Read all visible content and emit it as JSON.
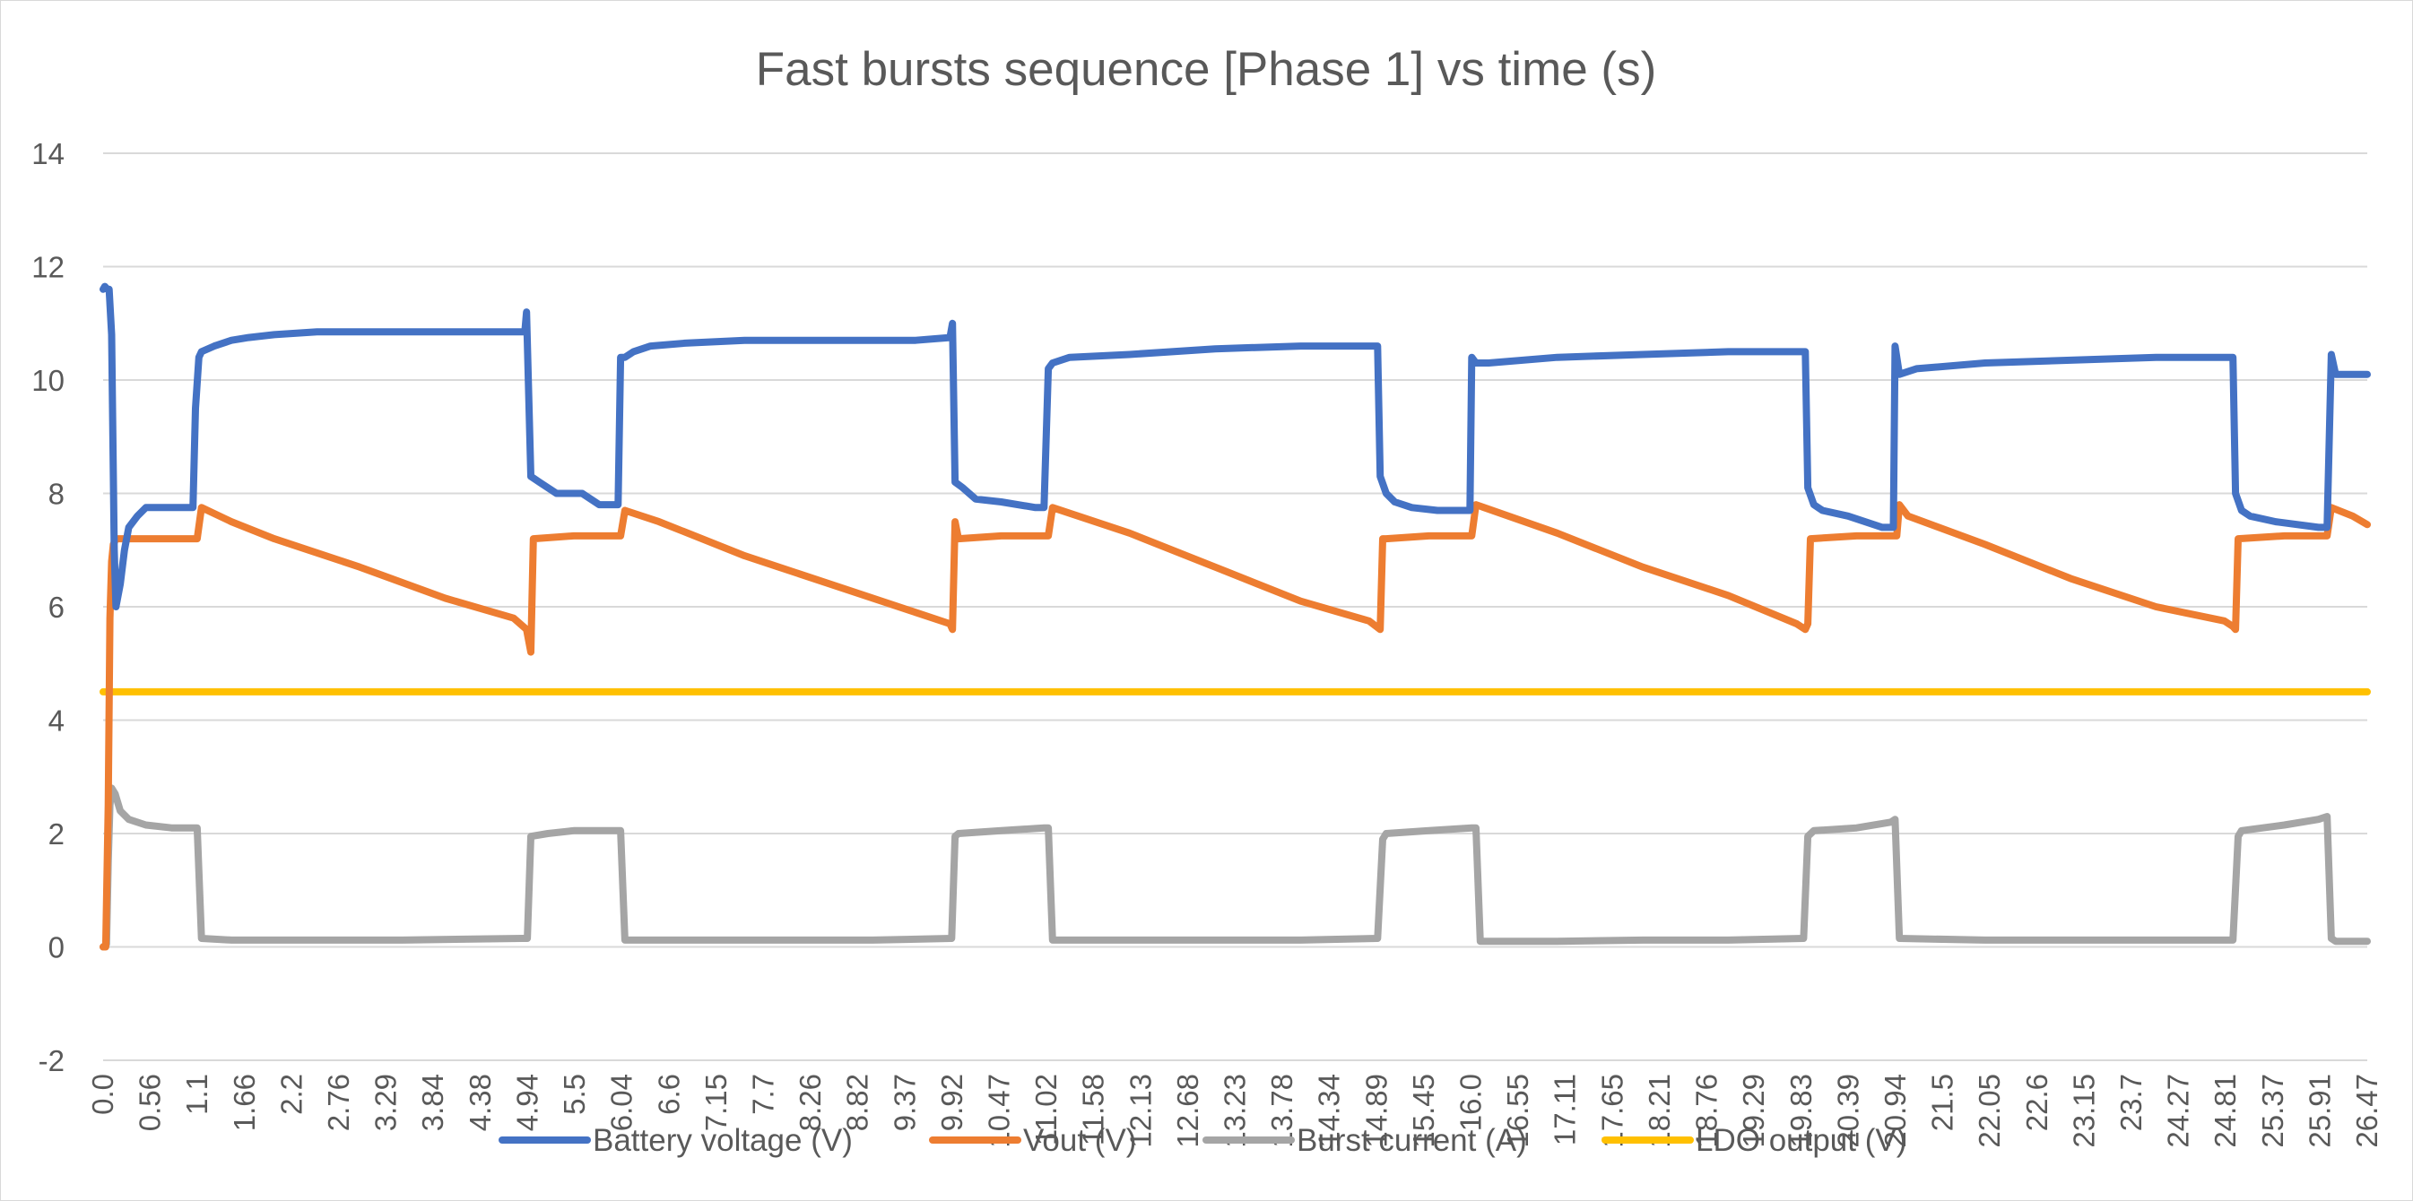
{
  "chart_data": {
    "type": "line",
    "title": "Fast bursts sequence [Phase 1] vs time (s)",
    "xlabel": "",
    "ylabel": "",
    "ylim": [
      -2,
      14
    ],
    "yticks": [
      "-2",
      "0",
      "2",
      "4",
      "6",
      "8",
      "10",
      "12",
      "14"
    ],
    "xlim": [
      0,
      26.47
    ],
    "xtick_labels": [
      "0.0",
      "0.56",
      "1.1",
      "1.66",
      "2.2",
      "2.76",
      "3.29",
      "3.84",
      "4.38",
      "4.94",
      "5.5",
      "6.04",
      "6.6",
      "7.15",
      "7.7",
      "8.26",
      "8.82",
      "9.37",
      "9.92",
      "10.47",
      "11.02",
      "11.58",
      "12.13",
      "12.68",
      "13.23",
      "13.78",
      "14.34",
      "14.89",
      "15.45",
      "16.0",
      "16.55",
      "17.11",
      "17.65",
      "18.21",
      "18.76",
      "19.29",
      "19.83",
      "20.39",
      "20.94",
      "21.5",
      "22.05",
      "22.6",
      "23.15",
      "23.7",
      "24.27",
      "24.81",
      "25.37",
      "25.91",
      "26.47"
    ],
    "grid": true,
    "legend_position": "bottom",
    "series": [
      {
        "name": "Battery voltage (V)",
        "color": "#4472C4",
        "x": [
          0.0,
          0.02,
          0.05,
          0.07,
          0.1,
          0.13,
          0.15,
          0.2,
          0.25,
          0.3,
          0.4,
          0.5,
          0.7,
          0.9,
          1.0,
          1.05,
          1.08,
          1.12,
          1.15,
          1.3,
          1.5,
          1.7,
          2.0,
          2.5,
          3.0,
          3.5,
          4.0,
          4.5,
          4.93,
          4.95,
          5.0,
          5.1,
          5.3,
          5.6,
          5.8,
          5.95,
          6.02,
          6.05,
          6.1,
          6.2,
          6.4,
          6.8,
          7.5,
          8.5,
          9.5,
          9.9,
          9.93,
          9.96,
          10.05,
          10.2,
          10.5,
          10.9,
          11.0,
          11.05,
          11.1,
          11.3,
          12.0,
          13.0,
          14.0,
          14.5,
          14.9,
          14.93,
          15.0,
          15.1,
          15.3,
          15.6,
          15.9,
          15.98,
          16.0,
          16.05,
          16.2,
          17.0,
          18.0,
          19.0,
          19.8,
          19.9,
          19.93,
          20.0,
          20.1,
          20.4,
          20.8,
          20.93,
          20.95,
          21.0,
          21.2,
          22.0,
          23.0,
          24.0,
          24.8,
          24.9,
          24.93,
          25.0,
          25.1,
          25.4,
          25.9,
          26.0,
          26.05,
          26.1,
          26.2,
          26.47
        ],
        "y": [
          11.6,
          11.65,
          11.6,
          11.6,
          10.8,
          7.0,
          6.0,
          6.4,
          7.0,
          7.4,
          7.6,
          7.75,
          7.75,
          7.75,
          7.75,
          7.75,
          9.5,
          10.4,
          10.5,
          10.6,
          10.7,
          10.75,
          10.8,
          10.85,
          10.85,
          10.85,
          10.85,
          10.85,
          10.85,
          11.2,
          8.3,
          8.2,
          8.0,
          8.0,
          7.8,
          7.8,
          7.8,
          10.4,
          10.4,
          10.5,
          10.6,
          10.65,
          10.7,
          10.7,
          10.7,
          10.75,
          11.0,
          8.2,
          8.1,
          7.9,
          7.85,
          7.75,
          7.75,
          10.2,
          10.3,
          10.4,
          10.45,
          10.55,
          10.6,
          10.6,
          10.6,
          8.3,
          8.0,
          7.85,
          7.75,
          7.7,
          7.7,
          7.7,
          10.4,
          10.3,
          10.3,
          10.4,
          10.45,
          10.5,
          10.5,
          10.5,
          8.1,
          7.8,
          7.7,
          7.6,
          7.4,
          7.4,
          10.6,
          10.1,
          10.2,
          10.3,
          10.35,
          10.4,
          10.4,
          10.4,
          8.0,
          7.7,
          7.6,
          7.5,
          7.4,
          7.4,
          10.45,
          10.1,
          10.1,
          10.1
        ]
      },
      {
        "name": "Vout (V)",
        "color": "#ED7D31",
        "x": [
          0.0,
          0.03,
          0.06,
          0.08,
          0.1,
          0.12,
          0.15,
          0.3,
          0.6,
          0.9,
          1.05,
          1.1,
          1.15,
          1.5,
          2.0,
          3.0,
          4.0,
          4.8,
          4.95,
          5.0,
          5.03,
          5.5,
          5.8,
          5.9,
          6.0,
          6.05,
          6.1,
          6.5,
          7.5,
          8.5,
          9.5,
          9.9,
          9.93,
          9.96,
          10.0,
          10.5,
          10.9,
          11.0,
          11.05,
          11.1,
          12.0,
          13.0,
          14.0,
          14.8,
          14.93,
          14.96,
          15.0,
          15.5,
          15.9,
          16.0,
          16.05,
          17.0,
          18.0,
          19.0,
          19.8,
          19.9,
          19.93,
          19.96,
          20.5,
          20.9,
          20.97,
          21.0,
          21.1,
          22.0,
          23.0,
          24.0,
          24.8,
          24.9,
          24.93,
          24.96,
          25.5,
          25.9,
          26.0,
          26.05,
          26.3,
          26.47
        ],
        "y": [
          0.0,
          0.0,
          2.5,
          5.8,
          6.8,
          7.1,
          7.2,
          7.2,
          7.2,
          7.2,
          7.2,
          7.2,
          7.75,
          7.5,
          7.2,
          6.7,
          6.15,
          5.8,
          5.6,
          5.2,
          7.2,
          7.25,
          7.25,
          7.25,
          7.25,
          7.25,
          7.7,
          7.5,
          6.9,
          6.4,
          5.9,
          5.7,
          5.6,
          7.5,
          7.2,
          7.25,
          7.25,
          7.25,
          7.25,
          7.75,
          7.3,
          6.7,
          6.1,
          5.75,
          5.6,
          7.2,
          7.2,
          7.25,
          7.25,
          7.25,
          7.8,
          7.3,
          6.7,
          6.2,
          5.7,
          5.6,
          5.7,
          7.2,
          7.25,
          7.25,
          7.25,
          7.8,
          7.6,
          7.1,
          6.5,
          6.0,
          5.75,
          5.65,
          5.6,
          7.2,
          7.25,
          7.25,
          7.25,
          7.75,
          7.6,
          7.45
        ]
      },
      {
        "name": "Burst current (A)",
        "color": "#A5A5A5",
        "x": [
          0.0,
          0.04,
          0.06,
          0.08,
          0.1,
          0.14,
          0.2,
          0.3,
          0.5,
          0.8,
          1.05,
          1.1,
          1.15,
          1.5,
          2.5,
          3.5,
          4.9,
          4.96,
          5.0,
          5.2,
          5.5,
          6.0,
          6.05,
          6.1,
          7.0,
          8.0,
          9.0,
          9.92,
          9.96,
          10.0,
          10.5,
          11.0,
          11.05,
          11.1,
          12.0,
          13.0,
          14.0,
          14.9,
          14.96,
          15.0,
          15.5,
          16.0,
          16.05,
          16.1,
          17.0,
          18.0,
          19.0,
          19.88,
          19.93,
          20.0,
          20.5,
          20.9,
          20.95,
          21.0,
          22.0,
          23.0,
          24.0,
          24.9,
          24.96,
          25.0,
          25.5,
          25.9,
          26.0,
          26.05,
          26.1,
          26.47
        ],
        "y": [
          0.0,
          0.05,
          1.5,
          2.5,
          2.8,
          2.7,
          2.4,
          2.25,
          2.15,
          2.1,
          2.1,
          2.1,
          0.15,
          0.12,
          0.12,
          0.12,
          0.15,
          0.15,
          1.95,
          2.0,
          2.05,
          2.05,
          2.05,
          0.12,
          0.12,
          0.12,
          0.12,
          0.15,
          1.95,
          2.0,
          2.05,
          2.1,
          2.1,
          0.12,
          0.12,
          0.12,
          0.12,
          0.15,
          1.9,
          2.0,
          2.05,
          2.1,
          2.1,
          0.1,
          0.1,
          0.12,
          0.12,
          0.15,
          1.95,
          2.05,
          2.1,
          2.2,
          2.25,
          0.15,
          0.12,
          0.12,
          0.12,
          0.12,
          1.95,
          2.05,
          2.15,
          2.25,
          2.3,
          0.15,
          0.1,
          0.1
        ]
      },
      {
        "name": "LDO output (V)",
        "color": "#FFC000",
        "x": [
          0.0,
          26.47
        ],
        "y": [
          4.5,
          4.5
        ]
      }
    ]
  }
}
